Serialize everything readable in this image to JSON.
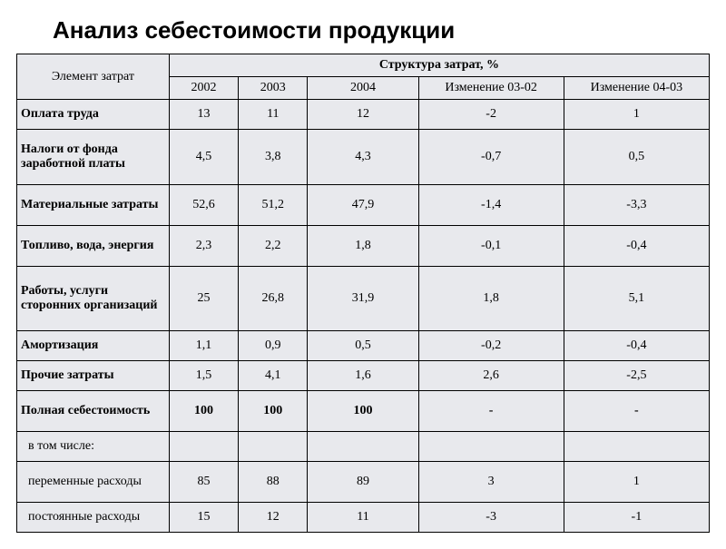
{
  "title": "Анализ себестоимости продукции",
  "table": {
    "type": "table",
    "background_color": "#e8e9ed",
    "border_color": "#000000",
    "text_color": "#000000",
    "header_font_family": "Times New Roman",
    "header_fontsize": 14,
    "title_fontsize": 26,
    "column_widths_pct": [
      22,
      10,
      10,
      16,
      21,
      21
    ],
    "headers": {
      "row_label": "Элемент затрат",
      "group": "Структура затрат, %",
      "cols": [
        "2002",
        "2003",
        "2004",
        "Изменение 03-02",
        "Изменение 04-03"
      ]
    },
    "rows": [
      {
        "label": "Оплата труда",
        "cells": [
          "13",
          "11",
          "12",
          "-2",
          "1"
        ],
        "bold": true,
        "indent": false,
        "h": "short"
      },
      {
        "label": "Налоги от фонда заработной платы",
        "cells": [
          "4,5",
          "3,8",
          "4,3",
          "-0,7",
          "0,5"
        ],
        "bold": true,
        "indent": false,
        "h": "tall"
      },
      {
        "label": "Материальные затраты",
        "cells": [
          "52,6",
          "51,2",
          "47,9",
          "-1,4",
          "-3,3"
        ],
        "bold": true,
        "indent": false,
        "h": "mid"
      },
      {
        "label": "Топливо, вода, энергия",
        "cells": [
          "2,3",
          "2,2",
          "1,8",
          "-0,1",
          "-0,4"
        ],
        "bold": true,
        "indent": false,
        "h": "mid"
      },
      {
        "label": "Работы, услуги сторонних организаций",
        "cells": [
          "25",
          "26,8",
          "31,9",
          "1,8",
          "5,1"
        ],
        "bold": true,
        "indent": false,
        "h": "tall3"
      },
      {
        "label": "Амортизация",
        "cells": [
          "1,1",
          "0,9",
          "0,5",
          "-0,2",
          "-0,4"
        ],
        "bold": true,
        "indent": false,
        "h": "short"
      },
      {
        "label": "Прочие затраты",
        "cells": [
          "1,5",
          "4,1",
          "1,6",
          "2,6",
          "-2,5"
        ],
        "bold": true,
        "indent": false,
        "h": "short"
      },
      {
        "label": "Полная себестоимость",
        "cells": [
          "100",
          "100",
          "100",
          "-",
          "-"
        ],
        "bold": true,
        "indent": false,
        "h": "mid"
      },
      {
        "label": "в том числе:",
        "cells": [
          "",
          "",
          "",
          "",
          ""
        ],
        "bold": false,
        "indent": true,
        "h": "short"
      },
      {
        "label": "переменные расходы",
        "cells": [
          "85",
          "88",
          "89",
          "3",
          "1"
        ],
        "bold": false,
        "indent": true,
        "h": "mid"
      },
      {
        "label": "постоянные расходы",
        "cells": [
          "15",
          "12",
          "11",
          "-3",
          "-1"
        ],
        "bold": false,
        "indent": true,
        "h": "short"
      }
    ]
  }
}
